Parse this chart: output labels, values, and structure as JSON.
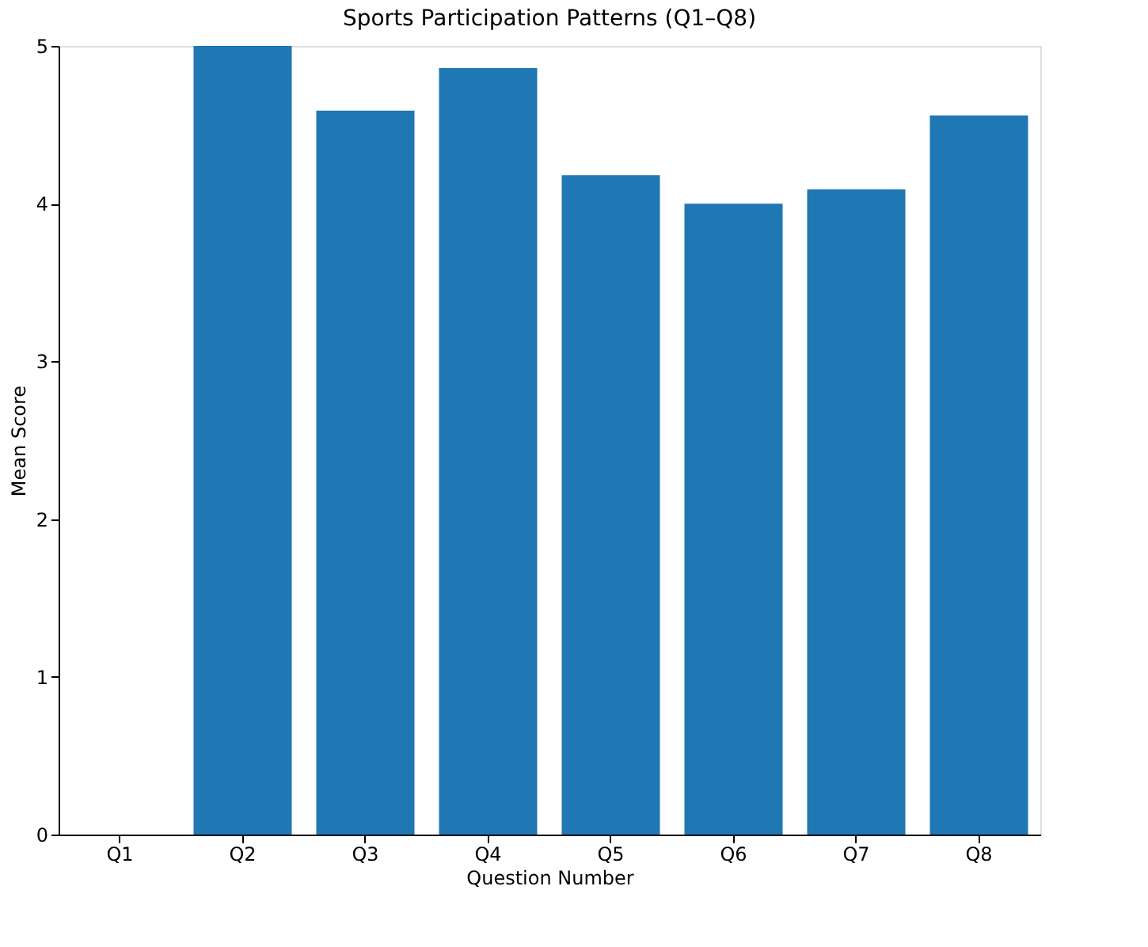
{
  "chart_data": {
    "type": "bar",
    "title": "Sports Participation Patterns (Q1–Q8)",
    "xlabel": "Question Number",
    "ylabel": "Mean Score",
    "categories": [
      "Q1",
      "Q2",
      "Q3",
      "Q4",
      "Q5",
      "Q6",
      "Q7",
      "Q8"
    ],
    "values": [
      null,
      5.0,
      4.59,
      4.86,
      4.18,
      4.0,
      4.09,
      4.56
    ],
    "color": "#1f77b4",
    "ylim": [
      0,
      5
    ],
    "yticks": [
      0,
      1,
      2,
      3,
      4,
      5
    ],
    "grid": false
  }
}
